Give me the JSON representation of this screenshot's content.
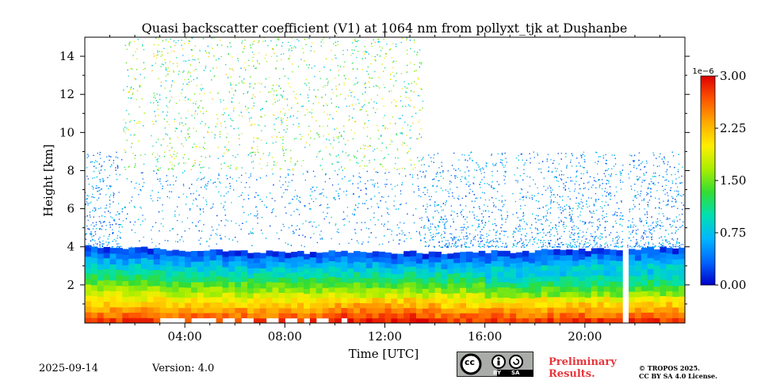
{
  "chart_data": {
    "type": "heatmap",
    "title": "Quasi backscatter coefficient (V1) at 1064 nm from pollyxt_tjk at Dushanbe",
    "xlabel": "Time [UTC]",
    "ylabel": "Height [km]",
    "xlim": [
      0,
      24
    ],
    "ylim": [
      0,
      15
    ],
    "x_ticks": [
      4,
      8,
      12,
      16,
      20
    ],
    "x_tick_labels": [
      "04:00",
      "08:00",
      "12:00",
      "16:00",
      "20:00"
    ],
    "y_ticks": [
      2,
      4,
      6,
      8,
      10,
      12,
      14
    ],
    "y_tick_labels": [
      "2",
      "4",
      "6",
      "8",
      "10",
      "12",
      "14"
    ],
    "colorbar": {
      "min": 0.0,
      "max": 3.0,
      "scale_label": "1e−6",
      "ticks": [
        "0.00",
        "0.75",
        "1.50",
        "2.25",
        "3.00"
      ],
      "colors": [
        "#0000cc",
        "#0066ff",
        "#00b7ff",
        "#00e0b0",
        "#33dd33",
        "#aaee00",
        "#ffee00",
        "#ffaa00",
        "#ff5500",
        "#dd0000"
      ]
    },
    "data_gaps_utc": [
      2.5,
      17.0,
      21.6
    ],
    "boundary_layer_top_km": 4.0,
    "dense_aerosol_top_km": 2.5
  },
  "footer": {
    "date": "2025-09-14",
    "version": "Version: 4.0",
    "preliminary_line1": "Preliminary",
    "preliminary_line2": "Results.",
    "copyright_line1": "© TROPOS 2025.",
    "copyright_line2": "CC BY SA 4.0 License.",
    "license_badge": {
      "cc": "cc",
      "by": "BY",
      "sa": "SA"
    }
  }
}
